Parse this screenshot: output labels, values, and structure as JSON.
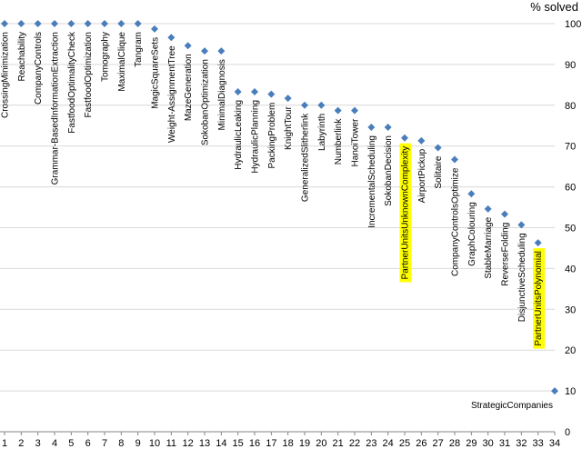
{
  "chart_data": {
    "type": "scatter",
    "ylabel": "% solved",
    "xlim": [
      1,
      34
    ],
    "ylim": [
      0,
      100
    ],
    "yticks": [
      0,
      10,
      20,
      30,
      40,
      50,
      60,
      70,
      80,
      90,
      100
    ],
    "xticks": [
      1,
      2,
      3,
      4,
      5,
      6,
      7,
      8,
      9,
      10,
      11,
      12,
      13,
      14,
      15,
      16,
      17,
      18,
      19,
      20,
      21,
      22,
      23,
      24,
      25,
      26,
      27,
      28,
      29,
      30,
      31,
      32,
      33,
      34
    ],
    "marker_color": "#4a7ebb",
    "highlight_color": "#ffff00",
    "gridlines": true,
    "points": [
      {
        "x": 1,
        "y": 100,
        "label": "CrossingMinimization"
      },
      {
        "x": 2,
        "y": 100,
        "label": "Reachability"
      },
      {
        "x": 3,
        "y": 100,
        "label": "CompanyControls"
      },
      {
        "x": 4,
        "y": 100,
        "label": "Grammar-BasedInformationExtraction"
      },
      {
        "x": 5,
        "y": 100,
        "label": "FastfoodOptimalityCheck"
      },
      {
        "x": 6,
        "y": 100,
        "label": "FastfoodOptimization"
      },
      {
        "x": 7,
        "y": 100,
        "label": "Tomography"
      },
      {
        "x": 8,
        "y": 100,
        "label": "MaximalClique"
      },
      {
        "x": 9,
        "y": 100,
        "label": "Tangram"
      },
      {
        "x": 10,
        "y": 98.7,
        "label": "MagicSquareSets"
      },
      {
        "x": 11,
        "y": 96.6,
        "label": "Weight-AssignmentTree"
      },
      {
        "x": 12,
        "y": 94.6,
        "label": "MazeGeneration"
      },
      {
        "x": 13,
        "y": 93.3,
        "label": "SokobanOptimization"
      },
      {
        "x": 14,
        "y": 93.3,
        "label": "MinimalDiagnosis"
      },
      {
        "x": 15,
        "y": 83.3,
        "label": "HydraulicLeaking"
      },
      {
        "x": 16,
        "y": 83.3,
        "label": "HydraulicPlanning"
      },
      {
        "x": 17,
        "y": 82.7,
        "label": "PackingProblem"
      },
      {
        "x": 18,
        "y": 81.7,
        "label": "KnightTour"
      },
      {
        "x": 19,
        "y": 80.0,
        "label": "GeneralizedSlitherlink"
      },
      {
        "x": 20,
        "y": 80.0,
        "label": "Labyrinth"
      },
      {
        "x": 21,
        "y": 78.7,
        "label": "Numberlink"
      },
      {
        "x": 22,
        "y": 78.7,
        "label": "HanoiTower"
      },
      {
        "x": 23,
        "y": 74.6,
        "label": "IncrementalScheduling"
      },
      {
        "x": 24,
        "y": 74.6,
        "label": "SokobanDecision"
      },
      {
        "x": 25,
        "y": 72.0,
        "label": "PartnerUnitsUnknownComplexity",
        "highlight": true
      },
      {
        "x": 26,
        "y": 71.3,
        "label": "AirportPickup"
      },
      {
        "x": 27,
        "y": 69.6,
        "label": "Solitaire"
      },
      {
        "x": 28,
        "y": 66.7,
        "label": "CompanyControlsOptimize"
      },
      {
        "x": 29,
        "y": 58.3,
        "label": "GraphColouring"
      },
      {
        "x": 30,
        "y": 54.6,
        "label": "StableMarriage"
      },
      {
        "x": 31,
        "y": 53.3,
        "label": "ReverseFolding"
      },
      {
        "x": 32,
        "y": 50.7,
        "label": "DisjunctiveScheduling"
      },
      {
        "x": 33,
        "y": 46.3,
        "label": "PartnerUnitsPolynomial",
        "highlight": true
      },
      {
        "x": 34,
        "y": 10.0,
        "label": "StrategicCompanies",
        "horizontal_label": true
      }
    ]
  }
}
